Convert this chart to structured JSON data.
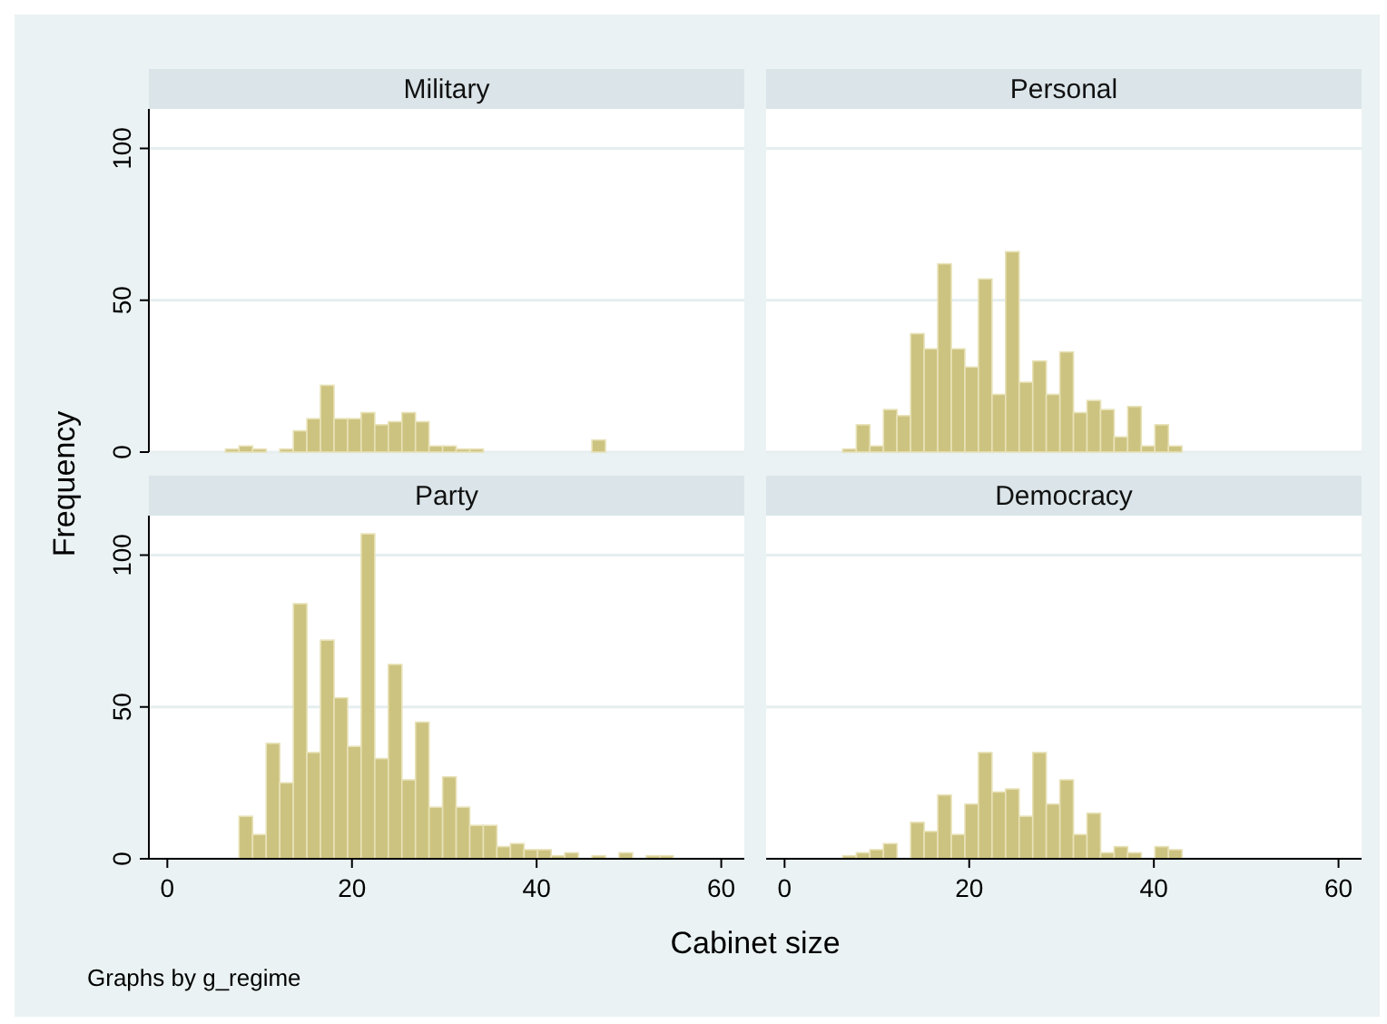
{
  "chart_data": [
    {
      "type": "histogram",
      "title": "Military",
      "ylabel": "Frequency",
      "color": "#cdc380",
      "xlim": [
        -2,
        62.5
      ],
      "ylim": [
        0,
        113
      ],
      "yticks": [
        0,
        50,
        100
      ],
      "grid": "y",
      "tick_labels": "y",
      "bins": [
        6.3,
        7.77,
        9.24,
        10.71,
        12.18,
        13.65,
        15.12,
        16.59,
        18.06,
        19.53,
        21.0,
        22.47,
        23.94,
        25.41,
        26.88,
        28.35,
        29.82,
        31.29,
        32.76,
        34.23,
        35.7,
        37.17,
        38.64,
        40.11,
        41.58,
        43.05,
        44.52,
        45.99,
        47.46,
        48.93,
        50.4,
        51.87,
        53.34,
        54.81
      ],
      "values": [
        1,
        2,
        1,
        0,
        1,
        7,
        11,
        22,
        11,
        11,
        13,
        9,
        10,
        13,
        10,
        2,
        2,
        1,
        1,
        0,
        0,
        0,
        0,
        0,
        0,
        0,
        0,
        4,
        0,
        0,
        0,
        0,
        0
      ]
    },
    {
      "type": "histogram",
      "title": "Personal",
      "color": "#cdc380",
      "xlim": [
        -2,
        62.5
      ],
      "ylim": [
        0,
        113
      ],
      "yticks": [
        0,
        50,
        100
      ],
      "grid": "y",
      "tick_labels": false,
      "bins": [
        6.3,
        7.77,
        9.24,
        10.71,
        12.18,
        13.65,
        15.12,
        16.59,
        18.06,
        19.53,
        21.0,
        22.47,
        23.94,
        25.41,
        26.88,
        28.35,
        29.82,
        31.29,
        32.76,
        34.23,
        35.7,
        37.17,
        38.64,
        40.11,
        41.58,
        43.05,
        44.52,
        45.99,
        47.46,
        48.93,
        50.4,
        51.87,
        53.34,
        54.81
      ],
      "values": [
        1,
        9,
        2,
        14,
        12,
        39,
        34,
        62,
        34,
        28,
        57,
        19,
        66,
        23,
        30,
        19,
        33,
        13,
        17,
        14,
        5,
        15,
        2,
        9,
        2,
        0,
        0,
        0,
        0,
        0,
        0,
        0,
        0
      ]
    },
    {
      "type": "histogram",
      "title": "Party",
      "xlabel": "Cabinet size",
      "annotations": [
        "Graphs by g_regime"
      ],
      "color": "#cdc380",
      "xlim": [
        -2,
        62.5
      ],
      "ylim": [
        0,
        113
      ],
      "xticks": [
        0,
        20,
        40,
        60
      ],
      "yticks": [
        0,
        50,
        100
      ],
      "grid": "y",
      "bins": [
        6.3,
        7.77,
        9.24,
        10.71,
        12.18,
        13.65,
        15.12,
        16.59,
        18.06,
        19.53,
        21.0,
        22.47,
        23.94,
        25.41,
        26.88,
        28.35,
        29.82,
        31.29,
        32.76,
        34.23,
        35.7,
        37.17,
        38.64,
        40.11,
        41.58,
        43.05,
        44.52,
        45.99,
        47.46,
        48.93,
        50.4,
        51.87,
        53.34,
        54.81
      ],
      "values": [
        0,
        14,
        8,
        38,
        25,
        84,
        35,
        72,
        53,
        37,
        107,
        33,
        64,
        26,
        45,
        17,
        27,
        17,
        11,
        11,
        4,
        5,
        3,
        3,
        1,
        2,
        0,
        1,
        0,
        2,
        0,
        1,
        1
      ]
    },
    {
      "type": "histogram",
      "title": "Democracy",
      "color": "#cdc380",
      "xlim": [
        -2,
        62.5
      ],
      "ylim": [
        0,
        113
      ],
      "xticks": [
        0,
        20,
        40,
        60
      ],
      "yticks": [
        0,
        50,
        100
      ],
      "grid": "y",
      "tick_labels": "x",
      "bins": [
        6.3,
        7.77,
        9.24,
        10.71,
        12.18,
        13.65,
        15.12,
        16.59,
        18.06,
        19.53,
        21.0,
        22.47,
        23.94,
        25.41,
        26.88,
        28.35,
        29.82,
        31.29,
        32.76,
        34.23,
        35.7,
        37.17,
        38.64,
        40.11,
        41.58,
        43.05,
        44.52,
        45.99,
        47.46,
        48.93,
        50.4,
        51.87,
        53.34,
        54.81
      ],
      "values": [
        1,
        2,
        3,
        5,
        0,
        12,
        9,
        21,
        8,
        18,
        35,
        22,
        23,
        14,
        35,
        18,
        26,
        8,
        15,
        2,
        4,
        2,
        0,
        4,
        3,
        0,
        0,
        0,
        0,
        0,
        0,
        0,
        0
      ]
    }
  ]
}
